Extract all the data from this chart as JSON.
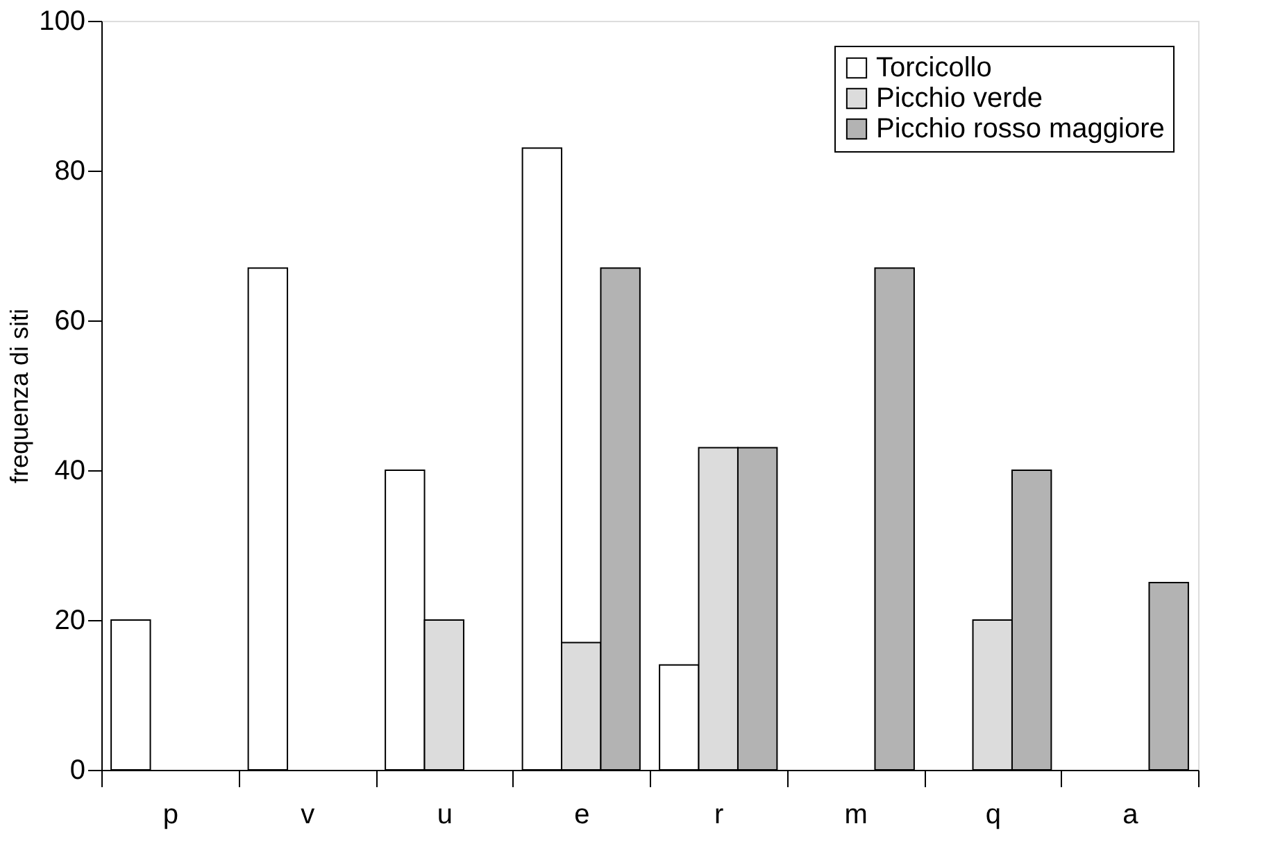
{
  "chart_data": {
    "type": "bar",
    "ylabel": "frequenza di siti",
    "categories": [
      "p",
      "v",
      "u",
      "e",
      "r",
      "m",
      "q",
      "a"
    ],
    "series": [
      {
        "name": "Torcicollo",
        "color": "#ffffff",
        "values": [
          20,
          67,
          40,
          83,
          14,
          null,
          null,
          null
        ]
      },
      {
        "name": "Picchio verde",
        "color": "#dcdcdc",
        "values": [
          null,
          null,
          20,
          17,
          43,
          null,
          20,
          null
        ]
      },
      {
        "name": "Picchio rosso maggiore",
        "color": "#b3b3b3",
        "values": [
          null,
          null,
          null,
          67,
          43,
          67,
          40,
          25
        ]
      }
    ],
    "ylim": [
      0,
      100
    ],
    "yticks": [
      0,
      20,
      40,
      60,
      80,
      100
    ],
    "grid": false,
    "legend": "top right"
  }
}
